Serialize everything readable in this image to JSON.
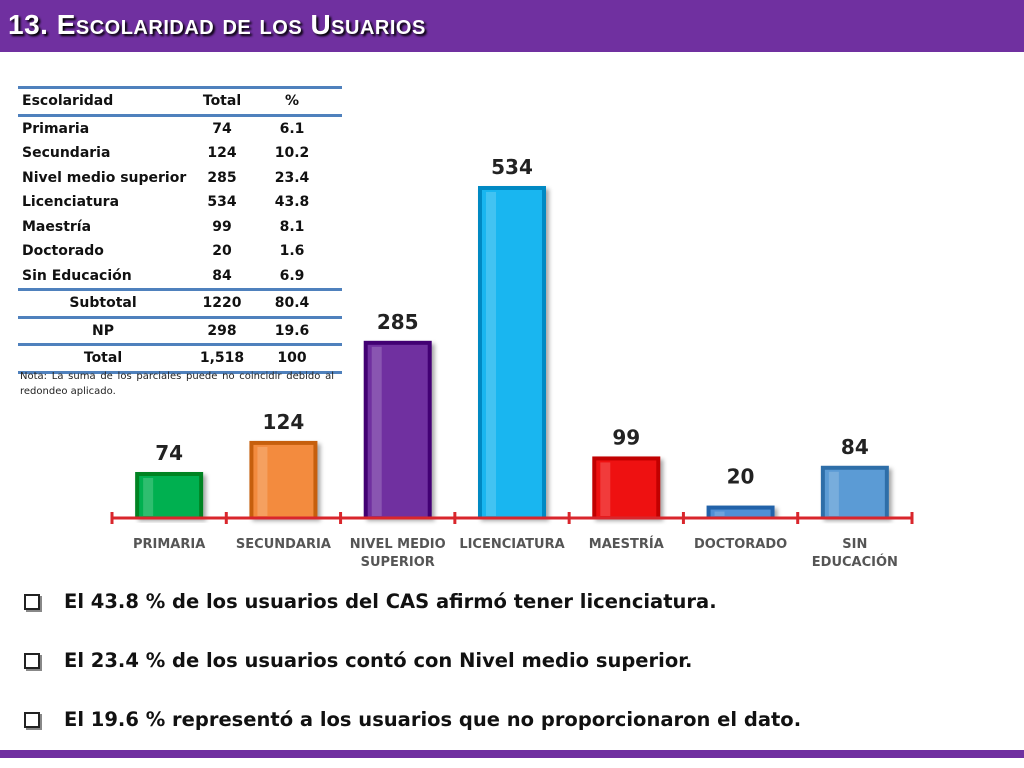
{
  "header": {
    "title": "13. Escolaridad de los Usuarios"
  },
  "table": {
    "headers": [
      "Escolaridad",
      "Total",
      "%"
    ],
    "rows": [
      [
        "Primaria",
        "74",
        "6.1"
      ],
      [
        "Secundaria",
        "124",
        "10.2"
      ],
      [
        "Nivel medio superior",
        "285",
        "23.4"
      ],
      [
        "Licenciatura",
        "534",
        "43.8"
      ],
      [
        "Maestría",
        "99",
        "8.1"
      ],
      [
        "Doctorado",
        "20",
        "1.6"
      ],
      [
        "Sin Educación",
        "84",
        "6.9"
      ]
    ],
    "subtotal": [
      "Subtotal",
      "1220",
      "80.4"
    ],
    "np": [
      "NP",
      "298",
      "19.6"
    ],
    "total": [
      "Total",
      "1,518",
      "100"
    ],
    "note": "Nota: La suma de los parciales puede no coincidir debido al redondeo aplicado."
  },
  "chart_data": {
    "type": "bar",
    "categories": [
      "PRIMARIA",
      "SECUNDARIA",
      "NIVEL MEDIO SUPERIOR",
      "LICENCIATURA",
      "MAESTRÍA",
      "DOCTORADO",
      "SIN EDUCACIÓN"
    ],
    "category_lines": [
      [
        "PRIMARIA"
      ],
      [
        "SECUNDARIA"
      ],
      [
        "NIVEL MEDIO",
        "SUPERIOR"
      ],
      [
        "LICENCIATURA"
      ],
      [
        "MAESTRÍA"
      ],
      [
        "DOCTORADO"
      ],
      [
        "SIN",
        "EDUCACIÓN"
      ]
    ],
    "values": [
      74,
      124,
      285,
      534,
      99,
      20,
      84
    ],
    "colors": [
      "#00b050",
      "#f38b3e",
      "#7030a0",
      "#19b6f0",
      "#ee1111",
      "#4f8fd6",
      "#5b9bd5"
    ],
    "axis_color": "#d9262c",
    "ylim": [
      0,
      534
    ],
    "title": "",
    "xlabel": "",
    "ylabel": ""
  },
  "bullets": [
    "El 43.8 % de los usuarios del CAS afirmó tener licenciatura.",
    "El 23.4 % de los usuarios contó con Nivel medio superior.",
    "El 19.6 % representó a los usuarios que no proporcionaron el dato."
  ],
  "colors": {
    "accent": "#7030a0",
    "table_line": "#4f81bd"
  }
}
